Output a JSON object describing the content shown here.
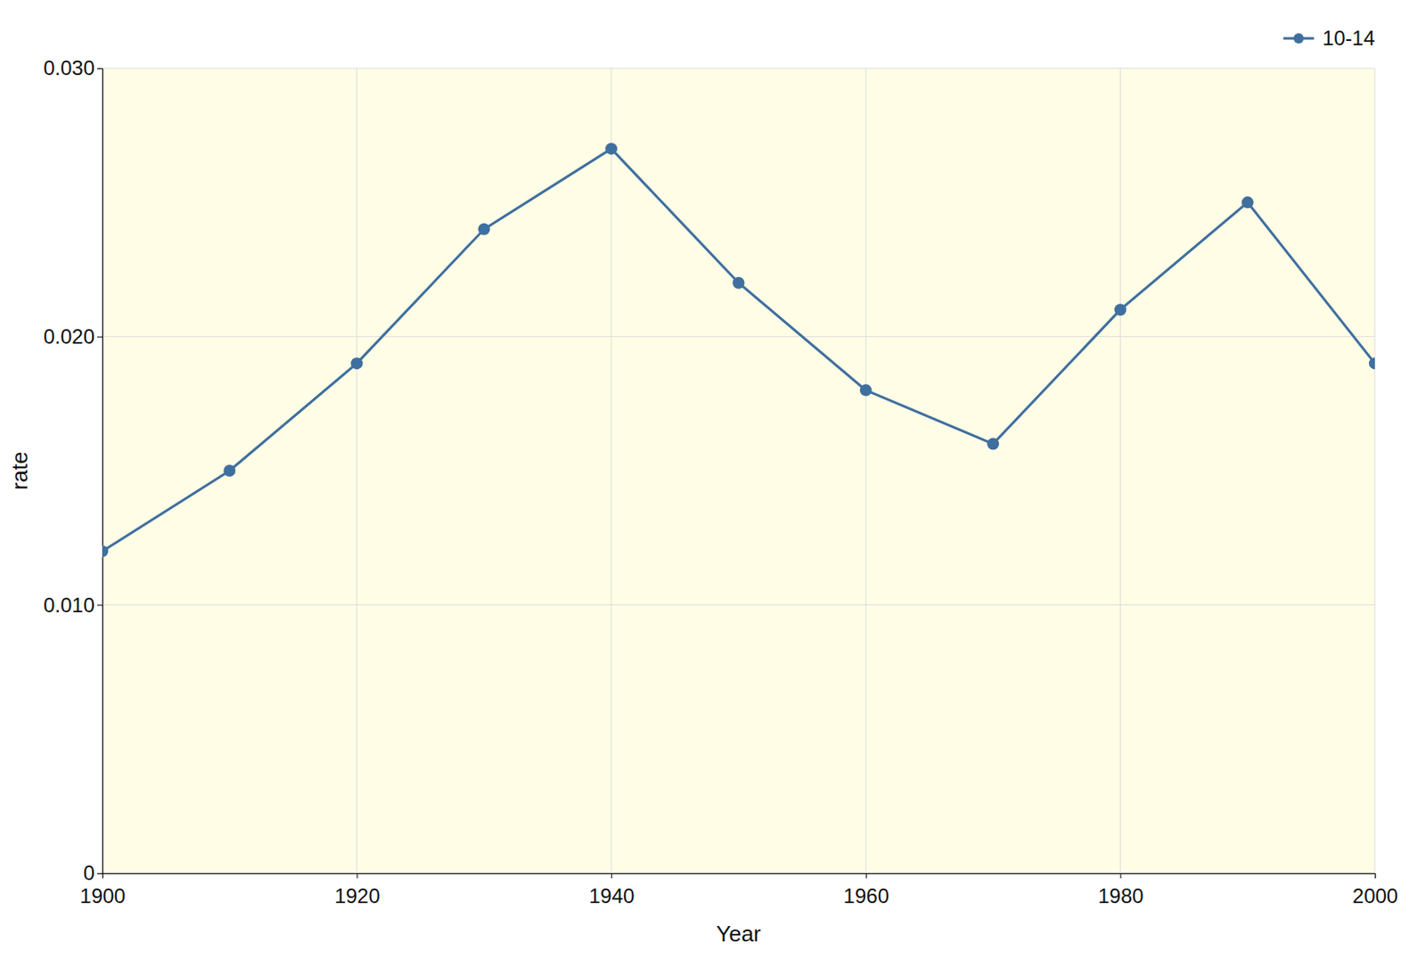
{
  "chart_data": {
    "type": "line",
    "x_label": "Year",
    "y_label": "rate",
    "x": [
      1900,
      1910,
      1920,
      1930,
      1940,
      1950,
      1960,
      1970,
      1980,
      1990,
      2000
    ],
    "series": [
      {
        "name": "10-14",
        "color": "#3f6f9f",
        "marker": "circle",
        "line_style": "solid",
        "values": [
          0.012,
          0.015,
          0.019,
          0.024,
          0.027,
          0.022,
          0.018,
          0.016,
          0.021,
          0.025,
          0.019
        ]
      }
    ],
    "xlim": [
      1900,
      2000
    ],
    "xticks": [
      1900,
      1920,
      1940,
      1960,
      1980,
      2000
    ],
    "ylim": [
      0,
      0.03
    ],
    "yticks": [
      0,
      {
        "value": 0.01,
        "label": "0.010"
      },
      {
        "value": 0.02,
        "label": "0.020"
      },
      {
        "value": 0.03,
        "label": "0.030"
      }
    ],
    "grid": true,
    "legend": "top-right"
  }
}
